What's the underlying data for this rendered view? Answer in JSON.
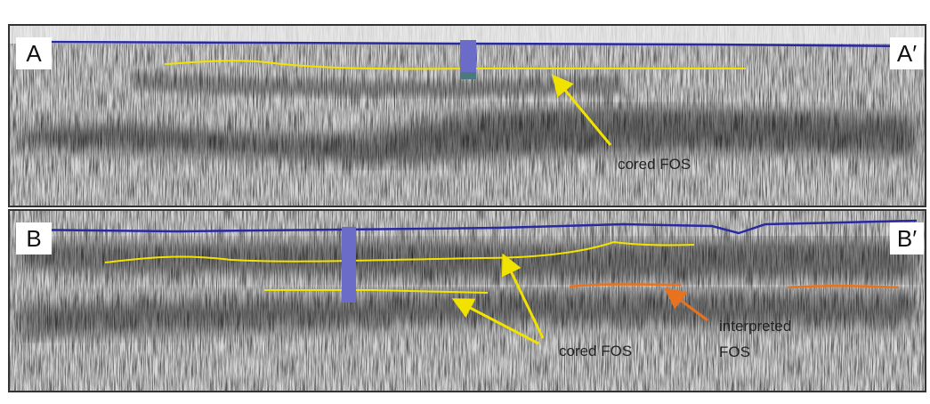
{
  "panels": [
    {
      "label_left": "A",
      "label_right": "A′",
      "annotations": [
        "cored FOS"
      ]
    },
    {
      "label_left": "B",
      "label_right": "B′",
      "annotations": [
        "cored FOS",
        "interpreted",
        "FOS"
      ]
    }
  ]
}
